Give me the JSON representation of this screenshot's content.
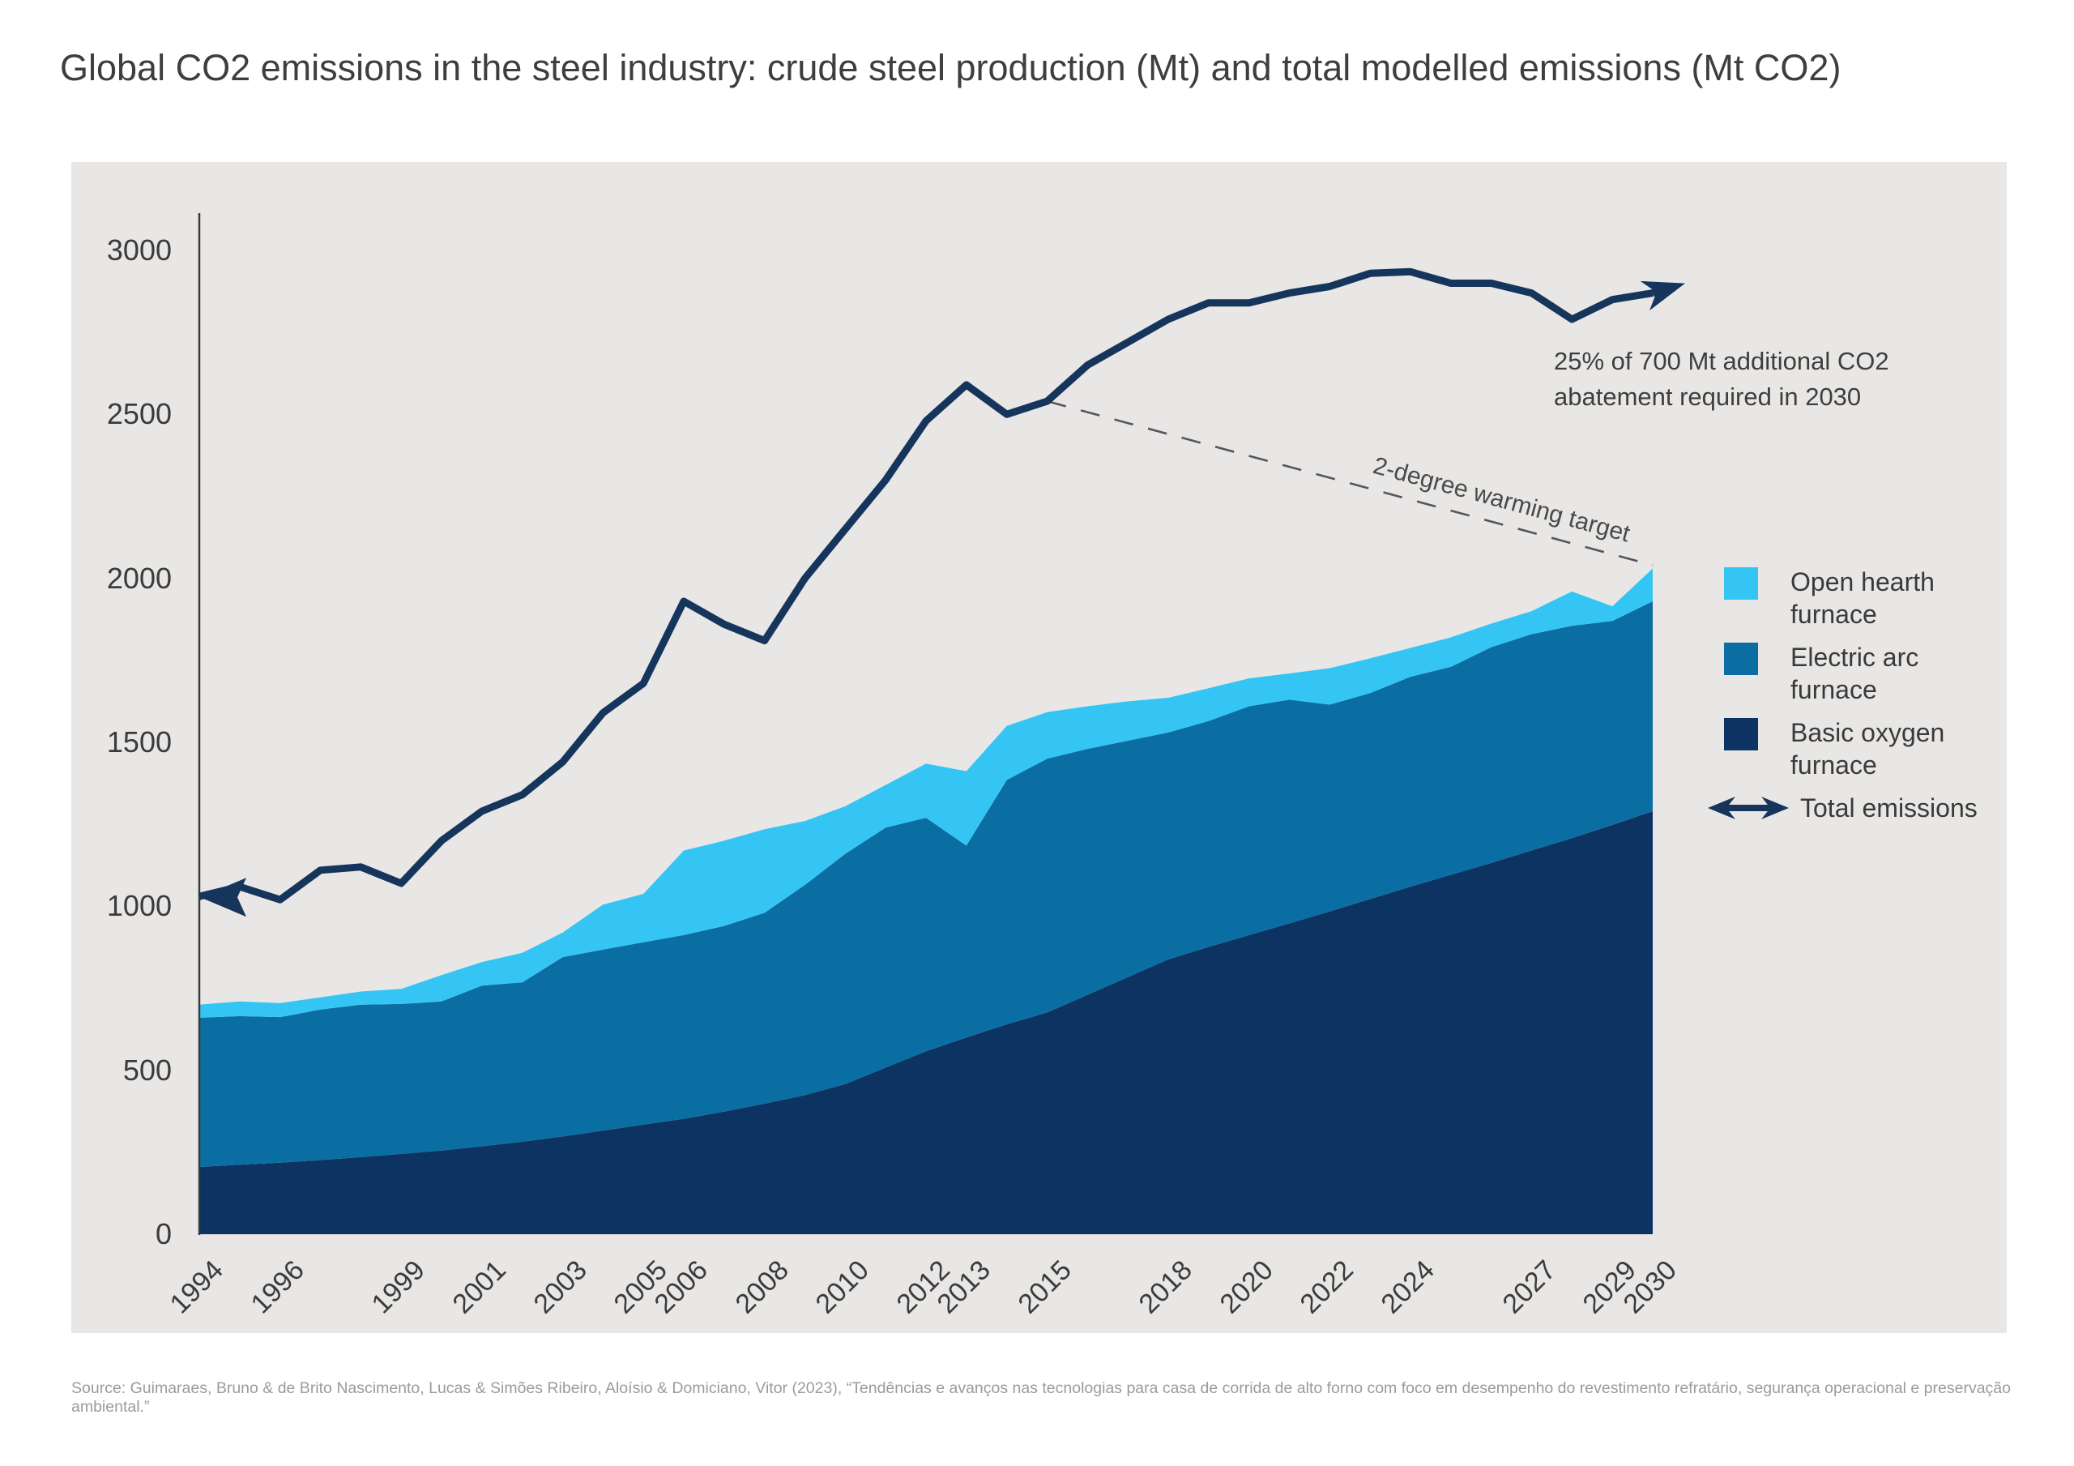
{
  "title": "Global CO2 emissions in the steel industry: crude steel production (Mt) and total modelled emissions (Mt CO2)",
  "annotation": {
    "line1": "25% of 700 Mt additional CO2",
    "line2": "abatement required in 2030"
  },
  "source": "Source: Guimaraes, Bruno & de Brito Nascimento, Lucas & Simões Ribeiro, Aloísio & Domiciano, Vitor (2023), “Tendências e avanços nas tecnologias para casa de corrida de alto forno com foco em desempenho do revestimento refratário, segurança operacional e preservação ambiental.”",
  "colors": {
    "open_hearth": "#35c5f4",
    "electric_arc": "#0a6ea3",
    "basic_oxygen": "#0c3361",
    "total_line": "#16355c",
    "target_dash": "#55565a",
    "panel_bg": "#e9e7e5",
    "axis": "#3a3a3a"
  },
  "legend": {
    "items": [
      {
        "label": "Open hearth furnace",
        "color": "#35c5f4",
        "type": "swatch"
      },
      {
        "label": "Electric arc furnace",
        "color": "#0a6ea3",
        "type": "swatch"
      },
      {
        "label": "Basic oxygen furnace",
        "color": "#0c3361",
        "type": "swatch"
      },
      {
        "label": "Total emissions",
        "color": "#16355c",
        "type": "arrow"
      }
    ]
  },
  "chart_data": {
    "type": "area",
    "stacked": true,
    "title": "Global CO2 emissions in the steel industry: crude steel production (Mt) and total modelled emissions (Mt CO2)",
    "xlabel": "",
    "ylabel": "",
    "ylim": [
      0,
      3000
    ],
    "y_ticks": [
      0,
      500,
      1000,
      1500,
      2000,
      2500,
      3000
    ],
    "grid": false,
    "legend_position": "right-inside",
    "x": [
      1994,
      1995,
      1996,
      1997,
      1998,
      1999,
      2000,
      2001,
      2002,
      2003,
      2004,
      2005,
      2006,
      2007,
      2008,
      2009,
      2010,
      2011,
      2012,
      2013,
      2014,
      2015,
      2016,
      2017,
      2018,
      2019,
      2020,
      2021,
      2022,
      2023,
      2024,
      2025,
      2026,
      2027,
      2028,
      2029,
      2030
    ],
    "x_tick_labels": [
      "1994",
      "1996",
      "1999",
      "2001",
      "2003",
      "2005",
      "2006",
      "2008",
      "2010",
      "2012",
      "2013",
      "2015",
      "2018",
      "2020",
      "2022",
      "2024",
      "2027",
      "2029",
      "2030"
    ],
    "series": [
      {
        "name": "Basic oxygen furnace",
        "color": "#0c3361",
        "values": [
          205,
          212,
          218,
          226,
          235,
          245,
          255,
          268,
          282,
          298,
          316,
          334,
          352,
          374,
          398,
          424,
          458,
          508,
          558,
          600,
          640,
          676,
          730,
          784,
          838,
          876,
          912,
          948,
          984,
          1022,
          1060,
          1096,
          1132,
          1170,
          1208,
          1248,
          1290
        ]
      },
      {
        "name": "Electric arc furnace",
        "color": "#0a6ea3",
        "values": [
          455,
          453,
          444,
          459,
          465,
          457,
          455,
          490,
          486,
          547,
          552,
          556,
          560,
          566,
          582,
          641,
          702,
          732,
          712,
          585,
          745,
          774,
          750,
          721,
          692,
          689,
          698,
          682,
          631,
          628,
          640,
          634,
          658,
          660,
          647,
          622,
          640
        ]
      },
      {
        "name": "Open hearth furnace",
        "color": "#35c5f4",
        "values": [
          40,
          45,
          43,
          37,
          40,
          46,
          80,
          72,
          90,
          75,
          137,
          148,
          258,
          260,
          255,
          195,
          145,
          130,
          165,
          227,
          165,
          142,
          130,
          120,
          106,
          100,
          85,
          80,
          111,
          106,
          88,
          90,
          72,
          70,
          105,
          45,
          100
        ]
      }
    ],
    "line_series": {
      "name": "Total emissions",
      "color": "#16355c",
      "values": [
        1030,
        1060,
        1020,
        1110,
        1120,
        1070,
        1200,
        1290,
        1340,
        1440,
        1590,
        1680,
        1930,
        1860,
        1810,
        2000,
        2150,
        2300,
        2480,
        2590,
        2500,
        2540,
        2650,
        2720,
        2790,
        2840,
        2840,
        2870,
        2890,
        2930,
        2935,
        2900,
        2900,
        2870,
        2790,
        2850,
        2870
      ]
    },
    "target_line": {
      "label": "2-degree warming target",
      "style": "dashed",
      "from": {
        "year": 2015,
        "value": 2540
      },
      "to": {
        "year": 2030,
        "value": 2040
      }
    }
  }
}
